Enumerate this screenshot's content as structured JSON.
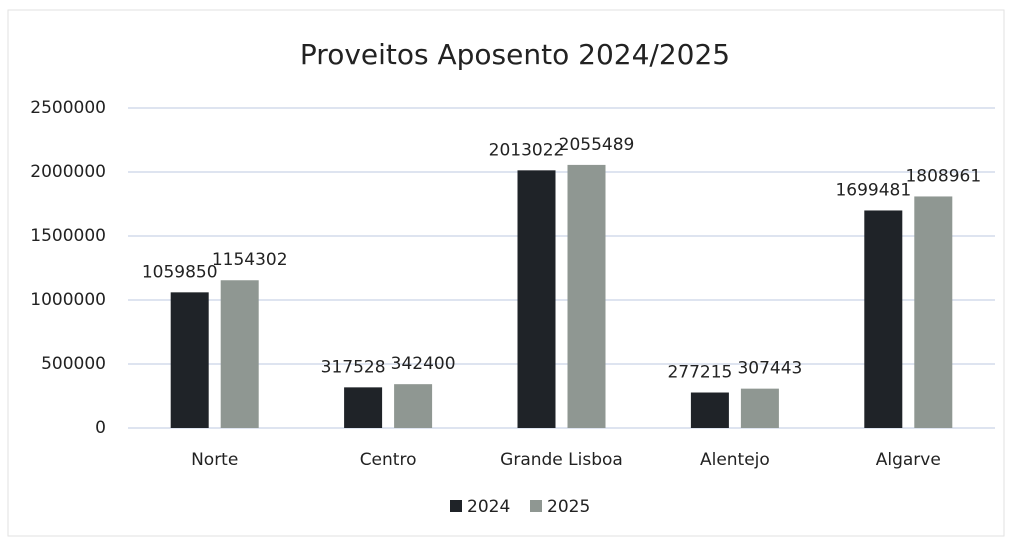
{
  "chart_data": {
    "type": "bar",
    "title": "Proveitos Aposento 2024/2025",
    "categories": [
      "Norte",
      "Centro",
      "Grande Lisboa",
      "Alentejo",
      "Algarve"
    ],
    "series": [
      {
        "name": "2024",
        "color": "#1f2328",
        "values": [
          1059850,
          317528,
          2013022,
          277215,
          1699481
        ]
      },
      {
        "name": "2025",
        "color": "#8f9792",
        "values": [
          1154302,
          342400,
          2055489,
          307443,
          1808961
        ]
      }
    ],
    "ylim": [
      0,
      2500000
    ],
    "yticks": [
      0,
      500000,
      1000000,
      1500000,
      2000000,
      2500000
    ],
    "grid": true,
    "legend": "bottom"
  }
}
